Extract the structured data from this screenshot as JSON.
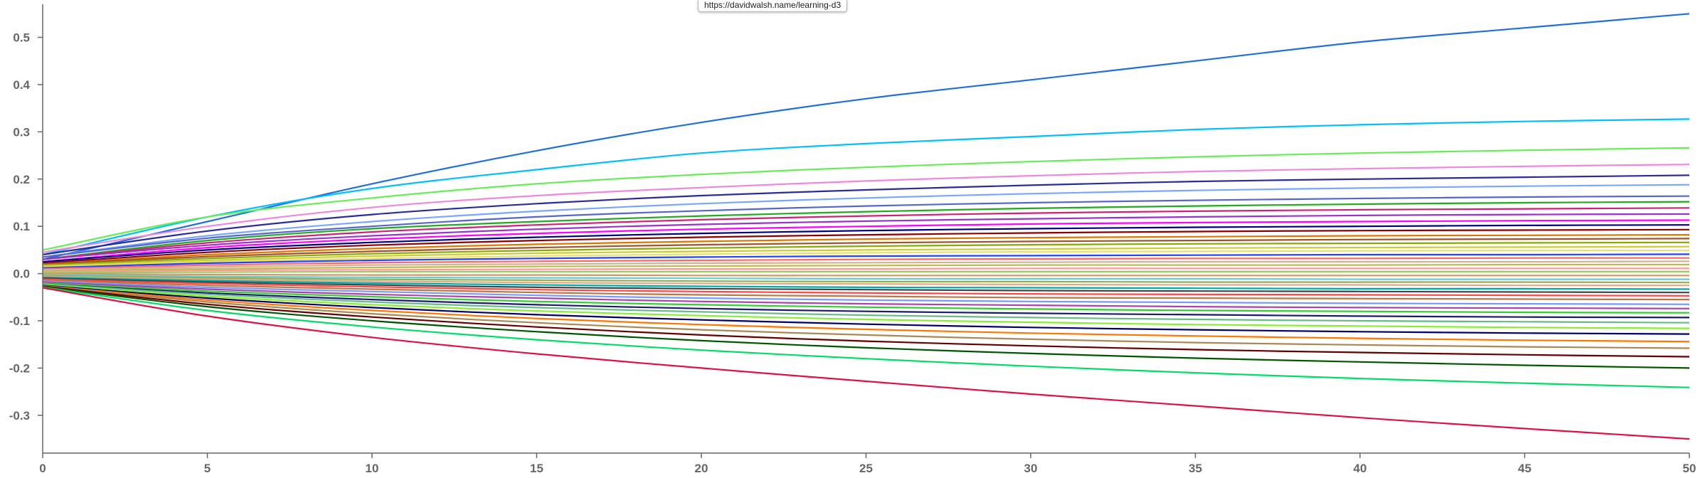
{
  "tooltip": {
    "text": "https://davidwalsh.name/learning-d3"
  },
  "chart_data": {
    "type": "line",
    "title": "",
    "xlabel": "",
    "ylabel": "",
    "xlim": [
      0,
      50
    ],
    "ylim": [
      -0.38,
      0.57
    ],
    "x_ticks": [
      0,
      5,
      10,
      15,
      20,
      25,
      30,
      35,
      40,
      45,
      50
    ],
    "y_ticks": [
      -0.3,
      -0.2,
      -0.1,
      0.0,
      0.1,
      0.2,
      0.3,
      0.4,
      0.5
    ],
    "x_tick_labels": [
      "0",
      "5",
      "10",
      "15",
      "20",
      "25",
      "30",
      "35",
      "40",
      "45",
      "50"
    ],
    "y_tick_labels": [
      "-0.3",
      "-0.2",
      "-0.1",
      "0.0",
      "0.1",
      "0.2",
      "0.3",
      "0.4",
      "0.5"
    ],
    "grid": false,
    "legend": "none",
    "x": [
      0,
      5,
      10,
      15,
      20,
      25,
      30,
      35,
      40,
      45,
      50
    ],
    "series": [
      {
        "color": "#1f6fdc",
        "values": [
          0.03,
          0.11,
          0.19,
          0.26,
          0.32,
          0.37,
          0.41,
          0.45,
          0.49,
          0.52,
          0.55
        ]
      },
      {
        "color": "#00bfff",
        "values": [
          0.04,
          0.12,
          0.18,
          0.22,
          0.255,
          0.275,
          0.29,
          0.305,
          0.315,
          0.322,
          0.327
        ]
      },
      {
        "color": "#66ee55",
        "values": [
          0.05,
          0.12,
          0.16,
          0.19,
          0.21,
          0.225,
          0.237,
          0.247,
          0.255,
          0.261,
          0.266
        ]
      },
      {
        "color": "#ee88dd",
        "values": [
          0.045,
          0.1,
          0.14,
          0.165,
          0.182,
          0.196,
          0.207,
          0.216,
          0.222,
          0.227,
          0.231
        ]
      },
      {
        "color": "#2b2b9a",
        "values": [
          0.04,
          0.09,
          0.125,
          0.148,
          0.165,
          0.177,
          0.187,
          0.195,
          0.2,
          0.204,
          0.208
        ]
      },
      {
        "color": "#7aa6ff",
        "values": [
          0.035,
          0.08,
          0.11,
          0.132,
          0.148,
          0.16,
          0.169,
          0.176,
          0.181,
          0.185,
          0.188
        ]
      },
      {
        "color": "#5566cc",
        "values": [
          0.035,
          0.075,
          0.1,
          0.12,
          0.133,
          0.143,
          0.15,
          0.155,
          0.159,
          0.162,
          0.164
        ]
      },
      {
        "color": "#22aa22",
        "values": [
          0.03,
          0.07,
          0.095,
          0.11,
          0.122,
          0.131,
          0.138,
          0.143,
          0.147,
          0.15,
          0.152
        ]
      },
      {
        "color": "#cc2277",
        "values": [
          0.03,
          0.065,
          0.088,
          0.103,
          0.114,
          0.122,
          0.128,
          0.132,
          0.135,
          0.137,
          0.139
        ]
      },
      {
        "color": "#9933cc",
        "values": [
          0.03,
          0.06,
          0.08,
          0.094,
          0.104,
          0.111,
          0.116,
          0.12,
          0.123,
          0.125,
          0.126
        ]
      },
      {
        "color": "#ff00ff",
        "values": [
          0.025,
          0.055,
          0.073,
          0.085,
          0.094,
          0.1,
          0.105,
          0.108,
          0.11,
          0.112,
          0.113
        ]
      },
      {
        "color": "#000080",
        "values": [
          0.025,
          0.05,
          0.066,
          0.077,
          0.085,
          0.091,
          0.095,
          0.098,
          0.1,
          0.102,
          0.103
        ]
      },
      {
        "color": "#8b0000",
        "values": [
          0.022,
          0.045,
          0.06,
          0.07,
          0.077,
          0.082,
          0.086,
          0.089,
          0.091,
          0.092,
          0.093
        ]
      },
      {
        "color": "#dd7700",
        "values": [
          0.02,
          0.04,
          0.053,
          0.062,
          0.068,
          0.073,
          0.076,
          0.078,
          0.08,
          0.081,
          0.082
        ]
      },
      {
        "color": "#a0522d",
        "values": [
          0.02,
          0.036,
          0.047,
          0.055,
          0.061,
          0.065,
          0.068,
          0.07,
          0.072,
          0.073,
          0.074
        ]
      },
      {
        "color": "#88aa00",
        "values": [
          0.018,
          0.032,
          0.042,
          0.049,
          0.054,
          0.058,
          0.061,
          0.063,
          0.064,
          0.065,
          0.066
        ]
      },
      {
        "color": "#cccc33",
        "values": [
          0.016,
          0.028,
          0.037,
          0.043,
          0.047,
          0.05,
          0.052,
          0.054,
          0.055,
          0.056,
          0.057
        ]
      },
      {
        "color": "#e8e070",
        "values": [
          0.014,
          0.025,
          0.032,
          0.037,
          0.041,
          0.044,
          0.046,
          0.047,
          0.048,
          0.049,
          0.049
        ]
      },
      {
        "color": "#2244ff",
        "values": [
          0.012,
          0.022,
          0.028,
          0.032,
          0.035,
          0.037,
          0.038,
          0.039,
          0.04,
          0.04,
          0.041
        ]
      },
      {
        "color": "#ff6666",
        "values": [
          0.01,
          0.018,
          0.023,
          0.026,
          0.028,
          0.03,
          0.031,
          0.032,
          0.032,
          0.033,
          0.033
        ]
      },
      {
        "color": "#d2b48c",
        "values": [
          0.008,
          0.014,
          0.018,
          0.02,
          0.022,
          0.023,
          0.024,
          0.025,
          0.025,
          0.025,
          0.026
        ]
      },
      {
        "color": "#bbbb55",
        "values": [
          0.006,
          0.01,
          0.013,
          0.015,
          0.016,
          0.017,
          0.018,
          0.018,
          0.018,
          0.019,
          0.019
        ]
      },
      {
        "color": "#ff9999",
        "values": [
          0.004,
          0.007,
          0.008,
          0.009,
          0.01,
          0.01,
          0.011,
          0.011,
          0.011,
          0.011,
          0.011
        ]
      },
      {
        "color": "#99cc66",
        "values": [
          0.002,
          0.003,
          0.004,
          0.004,
          0.004,
          0.004,
          0.004,
          0.004,
          0.004,
          0.004,
          0.004
        ]
      },
      {
        "color": "#cc9966",
        "values": [
          0.0,
          -0.002,
          -0.003,
          -0.003,
          -0.004,
          -0.004,
          -0.004,
          -0.004,
          -0.004,
          -0.004,
          -0.004
        ]
      },
      {
        "color": "#66cccc",
        "values": [
          -0.002,
          -0.006,
          -0.008,
          -0.009,
          -0.01,
          -0.011,
          -0.011,
          -0.011,
          -0.012,
          -0.012,
          -0.012
        ]
      },
      {
        "color": "#99aa55",
        "values": [
          -0.004,
          -0.009,
          -0.012,
          -0.014,
          -0.016,
          -0.017,
          -0.017,
          -0.018,
          -0.018,
          -0.018,
          -0.019
        ]
      },
      {
        "color": "#ddaa88",
        "values": [
          -0.006,
          -0.012,
          -0.016,
          -0.019,
          -0.021,
          -0.022,
          -0.023,
          -0.024,
          -0.024,
          -0.025,
          -0.025
        ]
      },
      {
        "color": "#00aaaa",
        "values": [
          -0.008,
          -0.015,
          -0.02,
          -0.024,
          -0.027,
          -0.029,
          -0.03,
          -0.031,
          -0.032,
          -0.032,
          -0.033
        ]
      },
      {
        "color": "#444444",
        "values": [
          -0.01,
          -0.018,
          -0.024,
          -0.029,
          -0.032,
          -0.034,
          -0.036,
          -0.037,
          -0.038,
          -0.039,
          -0.04
        ]
      },
      {
        "color": "#ff4444",
        "values": [
          -0.012,
          -0.021,
          -0.028,
          -0.034,
          -0.038,
          -0.041,
          -0.043,
          -0.044,
          -0.045,
          -0.046,
          -0.047
        ]
      },
      {
        "color": "#bb7744",
        "values": [
          -0.014,
          -0.025,
          -0.033,
          -0.04,
          -0.045,
          -0.048,
          -0.051,
          -0.052,
          -0.053,
          -0.054,
          -0.055
        ]
      },
      {
        "color": "#7799ff",
        "values": [
          -0.016,
          -0.029,
          -0.038,
          -0.046,
          -0.052,
          -0.056,
          -0.059,
          -0.061,
          -0.063,
          -0.064,
          -0.065
        ]
      },
      {
        "color": "#aa44aa",
        "values": [
          -0.018,
          -0.033,
          -0.044,
          -0.052,
          -0.059,
          -0.064,
          -0.067,
          -0.07,
          -0.072,
          -0.073,
          -0.074
        ]
      },
      {
        "color": "#33cc33",
        "values": [
          -0.02,
          -0.037,
          -0.049,
          -0.059,
          -0.066,
          -0.071,
          -0.075,
          -0.078,
          -0.08,
          -0.082,
          -0.083
        ]
      },
      {
        "color": "#1a1a6e",
        "values": [
          -0.022,
          -0.041,
          -0.055,
          -0.066,
          -0.074,
          -0.08,
          -0.084,
          -0.087,
          -0.09,
          -0.092,
          -0.093
        ]
      },
      {
        "color": "#66bb88",
        "values": [
          -0.022,
          -0.044,
          -0.06,
          -0.072,
          -0.081,
          -0.088,
          -0.093,
          -0.097,
          -0.1,
          -0.102,
          -0.104
        ]
      },
      {
        "color": "#88ee33",
        "values": [
          -0.024,
          -0.048,
          -0.066,
          -0.079,
          -0.089,
          -0.097,
          -0.103,
          -0.108,
          -0.111,
          -0.114,
          -0.116
        ]
      },
      {
        "color": "#000066",
        "values": [
          -0.025,
          -0.052,
          -0.072,
          -0.087,
          -0.098,
          -0.107,
          -0.114,
          -0.119,
          -0.123,
          -0.126,
          -0.128
        ]
      },
      {
        "color": "#ff7700",
        "values": [
          -0.026,
          -0.056,
          -0.078,
          -0.095,
          -0.108,
          -0.118,
          -0.126,
          -0.132,
          -0.137,
          -0.141,
          -0.144
        ]
      },
      {
        "color": "#aa8855",
        "values": [
          -0.026,
          -0.06,
          -0.085,
          -0.104,
          -0.119,
          -0.13,
          -0.139,
          -0.146,
          -0.151,
          -0.155,
          -0.158
        ]
      },
      {
        "color": "#660000",
        "values": [
          -0.027,
          -0.065,
          -0.092,
          -0.113,
          -0.13,
          -0.143,
          -0.153,
          -0.161,
          -0.167,
          -0.172,
          -0.176
        ]
      },
      {
        "color": "#005500",
        "values": [
          -0.028,
          -0.07,
          -0.1,
          -0.123,
          -0.142,
          -0.157,
          -0.169,
          -0.179,
          -0.187,
          -0.194,
          -0.2
        ]
      },
      {
        "color": "#00dd66",
        "values": [
          -0.029,
          -0.078,
          -0.113,
          -0.14,
          -0.162,
          -0.18,
          -0.196,
          -0.21,
          -0.222,
          -0.232,
          -0.241
        ]
      },
      {
        "color": "#dd1144",
        "values": [
          -0.03,
          -0.09,
          -0.135,
          -0.17,
          -0.2,
          -0.228,
          -0.255,
          -0.28,
          -0.305,
          -0.328,
          -0.35
        ]
      }
    ]
  }
}
